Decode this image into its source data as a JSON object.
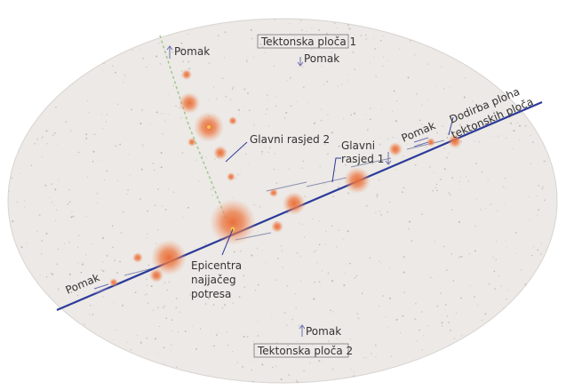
{
  "labels": {
    "plate1": "Tektonska ploča 1",
    "plate1_motion": "Pomak",
    "plate2": "Tektonska ploča 2",
    "plate2_motion": "Pomak",
    "fault2_motion": "Pomak",
    "main_fault_motion_left": "Pomak",
    "main_fault_motion_right": "Pomak",
    "fault2": "Glavni rasjed 2",
    "main_fault_line1": "Glavni",
    "main_fault_line2": "rasjed 1",
    "contact_line1": "Dodirba ploha",
    "contact_line2": "tektonskih ploča",
    "epicenter_line1": "Epicentra",
    "epicenter_line2": "najjačeg",
    "epicenter_line3": "potresa"
  },
  "colors": {
    "background": "#ffffff",
    "plate_fill": "#ece9e6",
    "fault_line": "#2c3a9a",
    "secondary_fault": "#9bc98a",
    "quake": "#e8703a",
    "text": "#333333"
  }
}
